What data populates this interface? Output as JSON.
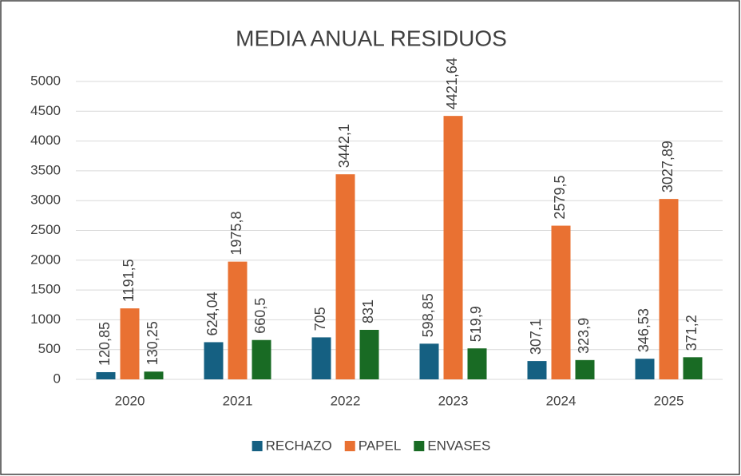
{
  "chart_data": {
    "type": "bar",
    "title": "MEDIA ANUAL RESIDUOS",
    "categories": [
      "2020",
      "2021",
      "2022",
      "2023",
      "2024",
      "2025"
    ],
    "series": [
      {
        "name": "RECHAZO",
        "color": "#156082",
        "values": [
          120.85,
          624.04,
          705,
          598.85,
          307.1,
          346.53
        ],
        "value_labels": [
          "120,85",
          "624,04",
          "705",
          "598,85",
          "307,1",
          "346,53"
        ]
      },
      {
        "name": "PAPEL",
        "color": "#e97132",
        "values": [
          1191.5,
          1975.8,
          3442.1,
          4421.64,
          2579.5,
          3027.89
        ],
        "value_labels": [
          "1191,5",
          "1975,8",
          "3442,1",
          "4421,64",
          "2579,5",
          "3027,89"
        ]
      },
      {
        "name": "ENVASES",
        "color": "#196b24",
        "values": [
          130.25,
          660.5,
          831,
          519.9,
          323.9,
          371.2
        ],
        "value_labels": [
          "130,25",
          "660,5",
          "831",
          "519,9",
          "323,9",
          "371,2"
        ]
      }
    ],
    "ylim": [
      0,
      5000
    ],
    "yticks": [
      0,
      500,
      1000,
      1500,
      2000,
      2500,
      3000,
      3500,
      4000,
      4500,
      5000
    ],
    "grid": true,
    "legend": "bottom"
  }
}
